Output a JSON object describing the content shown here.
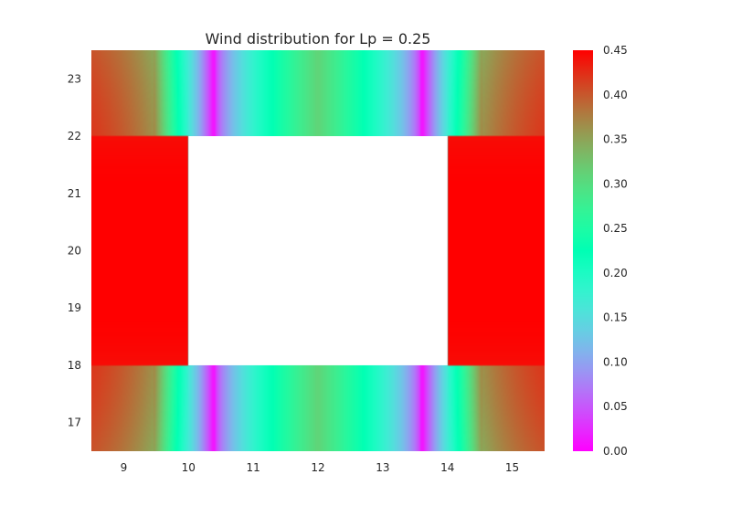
{
  "chart_data": {
    "type": "heatmap",
    "title": "Wind distribution for Lp = 0.25",
    "xlabel": "",
    "ylabel": "",
    "xlim": [
      8.5,
      15.5
    ],
    "ylim": [
      16.5,
      23.5
    ],
    "x_ticks": [
      9,
      10,
      11,
      12,
      13,
      14,
      15
    ],
    "y_ticks": [
      17,
      18,
      19,
      20,
      21,
      22,
      23
    ],
    "excluded_region": {
      "x": [
        10,
        14
      ],
      "y": [
        18,
        22
      ]
    },
    "colormap": "rainbow",
    "color_range": [
      0.0,
      0.45
    ],
    "colorbar_ticks": [
      "0.00",
      "0.05",
      "0.10",
      "0.15",
      "0.20",
      "0.25",
      "0.30",
      "0.35",
      "0.40",
      "0.45"
    ],
    "grid": false,
    "field_description": {
      "side_bands_peak": 0.45,
      "top_bottom_center": 0.31,
      "minimum_near_building_corners": 0.0,
      "minimum_x_positions": [
        10.4,
        13.6
      ]
    }
  }
}
